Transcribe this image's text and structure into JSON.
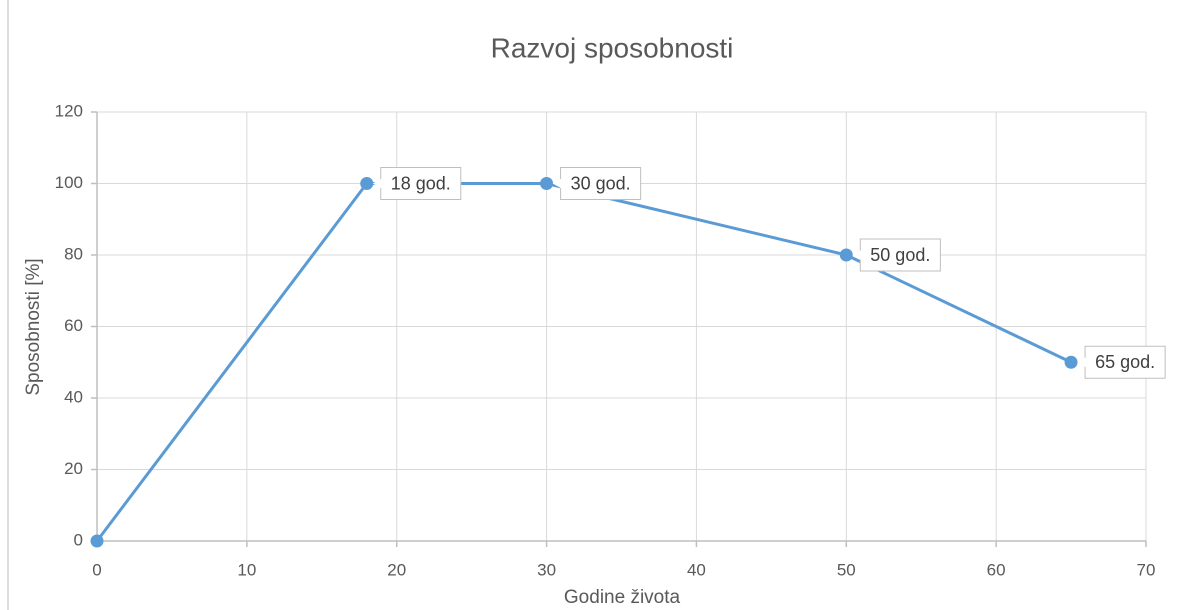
{
  "chart_data": {
    "type": "line",
    "title": "Razvoj sposobnosti",
    "x_label": "Godine života",
    "y_label": "Sposobnosti [%]",
    "x": [
      0,
      18,
      30,
      50,
      65
    ],
    "values": [
      0,
      100,
      100,
      80,
      50
    ],
    "point_labels": [
      null,
      "18 god.",
      "30 god.",
      "50 god.",
      "65 god."
    ],
    "color": "#5b9bd5",
    "xlim": [
      0,
      70
    ],
    "xticks": [
      0,
      10,
      20,
      30,
      40,
      50,
      60,
      70
    ],
    "ylim": [
      0,
      120
    ],
    "yticks": [
      0,
      20,
      40,
      60,
      80,
      100,
      120
    ],
    "grid": true
  }
}
